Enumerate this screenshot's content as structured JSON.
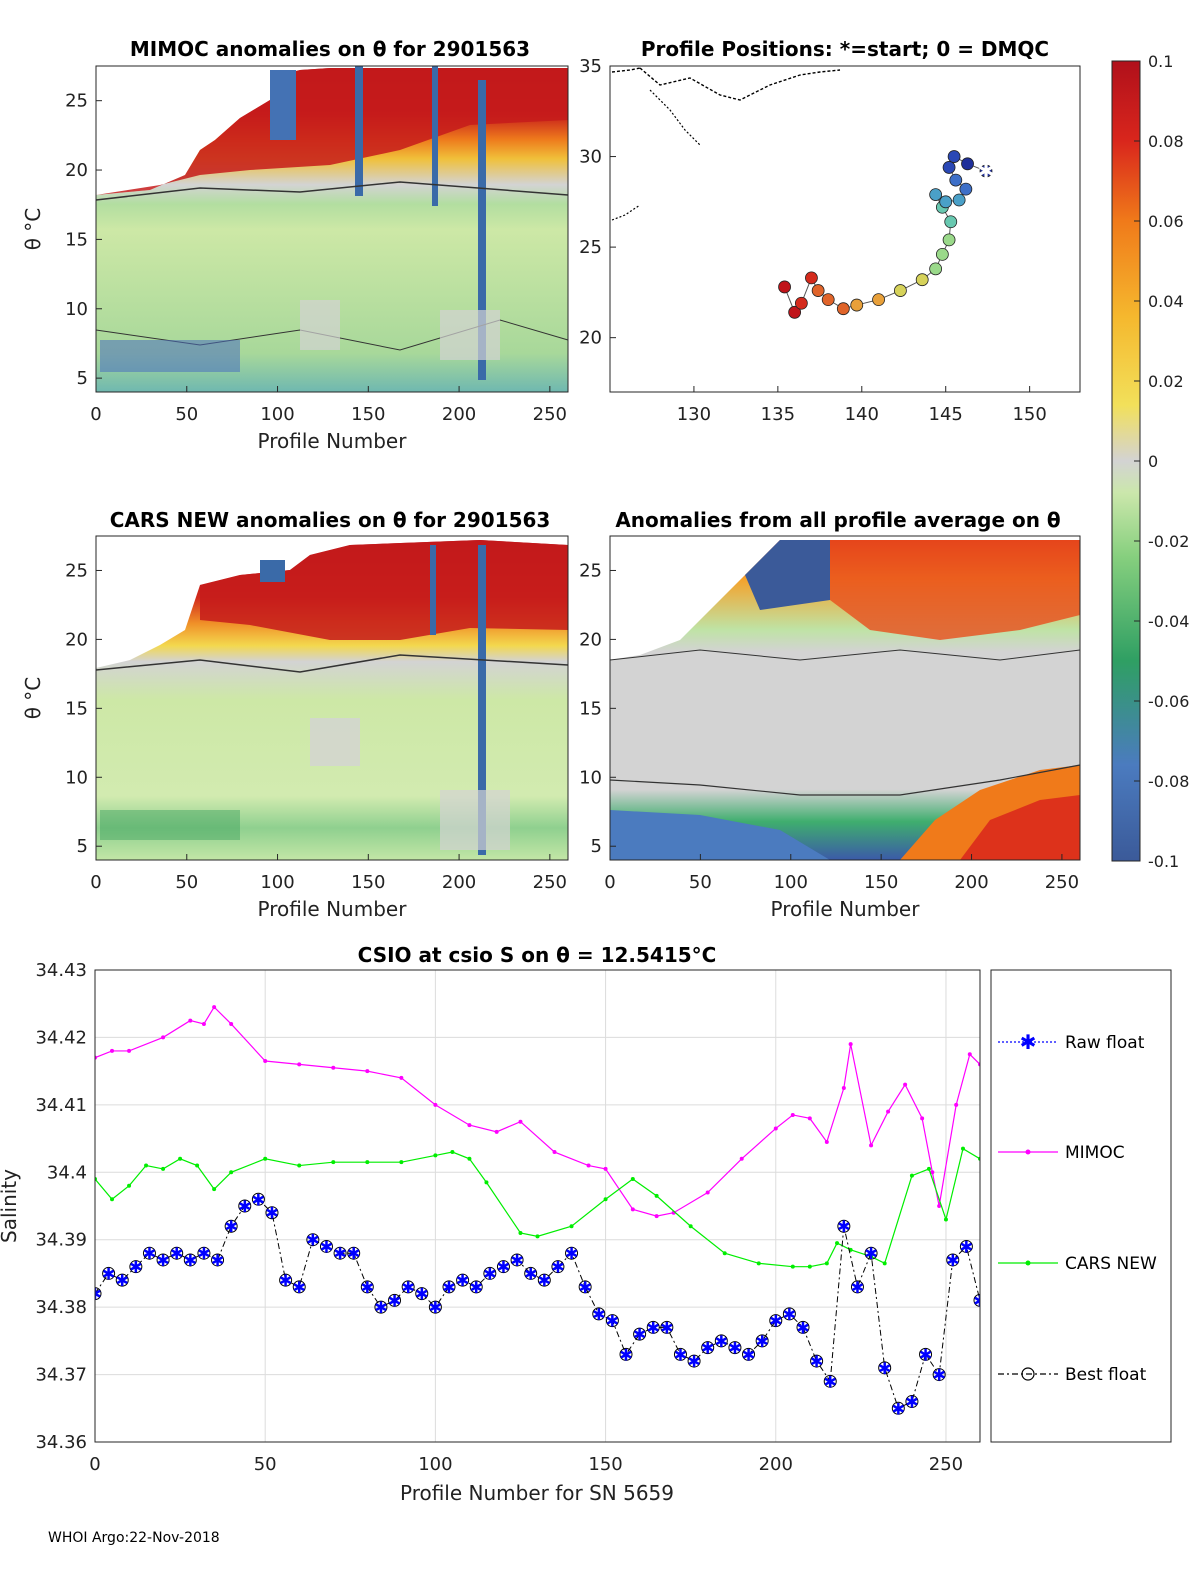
{
  "footer": "WHOI Argo:22-Nov-2018",
  "colorbar": {
    "ticks": [
      "0.1",
      "0.08",
      "0.06",
      "0.04",
      "0.02",
      "0",
      "-0.02",
      "-0.04",
      "-0.06",
      "-0.08",
      "-0.1"
    ],
    "colors": [
      "#3b5a99",
      "#4b7bbf",
      "#3aa05a",
      "#7ccd7c",
      "#c9e6a7",
      "#d3d3d3",
      "#f2e05a",
      "#f5b82e",
      "#f07a1a",
      "#d9261c",
      "#b0101b"
    ]
  },
  "chart_data": [
    {
      "type": "heatmap",
      "title": "MIMOC anomalies on θ  for 2901563",
      "xlabel": "Profile Number",
      "ylabel": "θ °C",
      "xlim": [
        0,
        260
      ],
      "ylim": [
        4,
        27.5
      ],
      "xticks": [
        "0",
        "50",
        "100",
        "150",
        "200",
        "250"
      ],
      "yticks": [
        "5",
        "10",
        "15",
        "20",
        "25"
      ]
    },
    {
      "type": "scatter",
      "title": "Profile Positions: *=start; 0 = DMQC",
      "xlim": [
        125,
        153
      ],
      "ylim": [
        17,
        35
      ],
      "xticks": [
        "130",
        "135",
        "140",
        "145",
        "150"
      ],
      "yticks": [
        "20",
        "25",
        "30",
        "35"
      ],
      "track_lon": [
        147.4,
        146.3,
        145.5,
        145.2,
        145.6,
        146.2,
        145.8,
        145.0,
        144.4,
        144.8,
        145.3,
        145.2,
        144.8,
        144.4,
        143.6,
        142.3,
        141.0,
        139.7,
        138.9,
        138.0,
        137.4,
        137.0,
        136.4,
        136.0,
        135.4
      ],
      "track_lat": [
        29.2,
        29.6,
        30.0,
        29.4,
        28.7,
        28.2,
        27.6,
        27.5,
        27.9,
        27.2,
        26.4,
        25.4,
        24.6,
        23.8,
        23.2,
        22.6,
        22.1,
        21.8,
        21.6,
        22.1,
        22.6,
        23.3,
        21.9,
        21.4,
        22.8
      ]
    },
    {
      "type": "heatmap",
      "title": "CARS NEW anomalies on θ for 2901563",
      "xlabel": "Profile Number",
      "ylabel": "θ °C",
      "xlim": [
        0,
        260
      ],
      "ylim": [
        4,
        27.5
      ],
      "xticks": [
        "0",
        "50",
        "100",
        "150",
        "200",
        "250"
      ],
      "yticks": [
        "5",
        "10",
        "15",
        "20",
        "25"
      ]
    },
    {
      "type": "heatmap",
      "title": "Anomalies from all profile average on θ",
      "xlabel": "Profile Number",
      "xlim": [
        0,
        260
      ],
      "ylim": [
        4,
        27.5
      ],
      "xticks": [
        "0",
        "50",
        "100",
        "150",
        "200",
        "250"
      ],
      "yticks": [
        "5",
        "10",
        "15",
        "20",
        "25"
      ]
    },
    {
      "type": "line",
      "title": "CSIO at csio S on θ = 12.5415°C",
      "xlabel": "Profile Number for SN 5659",
      "ylabel": "Salinity",
      "xlim": [
        0,
        260
      ],
      "ylim": [
        34.36,
        34.43
      ],
      "xticks": [
        "0",
        "50",
        "100",
        "150",
        "200",
        "250"
      ],
      "yticks": [
        "34.36",
        "34.37",
        "34.38",
        "34.39",
        "34.4",
        "34.41",
        "34.42",
        "34.43"
      ],
      "legend": [
        "Raw float",
        "MIMOC",
        "CARS NEW",
        "Best float"
      ],
      "legend_position": "outside-right",
      "series": [
        {
          "name": "MIMOC",
          "color": "#ff00ff",
          "x": [
            0,
            5,
            10,
            20,
            28,
            32,
            35,
            40,
            50,
            60,
            70,
            80,
            90,
            100,
            110,
            118,
            125,
            135,
            145,
            150,
            158,
            165,
            170,
            180,
            190,
            200,
            205,
            210,
            215,
            220,
            222,
            228,
            233,
            238,
            243,
            246,
            248,
            253,
            257,
            260
          ],
          "y": [
            34.417,
            34.418,
            34.418,
            34.42,
            34.4225,
            34.422,
            34.4245,
            34.422,
            34.4165,
            34.416,
            34.4155,
            34.415,
            34.414,
            34.41,
            34.407,
            34.406,
            34.4075,
            34.403,
            34.401,
            34.4005,
            34.3945,
            34.3935,
            34.394,
            34.397,
            34.402,
            34.4065,
            34.4085,
            34.408,
            34.4045,
            34.4125,
            34.419,
            34.404,
            34.409,
            34.413,
            34.408,
            34.4,
            34.395,
            34.41,
            34.4175,
            34.416
          ]
        },
        {
          "name": "CARS NEW",
          "color": "#00ee00",
          "x": [
            0,
            5,
            10,
            15,
            20,
            25,
            30,
            35,
            40,
            50,
            60,
            70,
            80,
            90,
            100,
            105,
            110,
            115,
            125,
            130,
            140,
            150,
            158,
            165,
            175,
            185,
            195,
            205,
            210,
            215,
            218,
            222,
            228,
            232,
            240,
            245,
            250,
            255,
            260
          ],
          "y": [
            34.399,
            34.396,
            34.398,
            34.401,
            34.4005,
            34.402,
            34.401,
            34.3975,
            34.4,
            34.402,
            34.401,
            34.4015,
            34.4015,
            34.4015,
            34.4025,
            34.403,
            34.402,
            34.3985,
            34.391,
            34.3905,
            34.392,
            34.396,
            34.399,
            34.3965,
            34.392,
            34.388,
            34.3865,
            34.386,
            34.386,
            34.3865,
            34.3895,
            34.3885,
            34.3875,
            34.3865,
            34.3995,
            34.4005,
            34.393,
            34.4035,
            34.402
          ]
        },
        {
          "name": "Best float",
          "color": "#000000",
          "x": [
            0,
            4,
            8,
            12,
            16,
            20,
            24,
            28,
            32,
            36,
            40,
            44,
            48,
            52,
            56,
            60,
            64,
            68,
            72,
            76,
            80,
            84,
            88,
            92,
            96,
            100,
            104,
            108,
            112,
            116,
            120,
            124,
            128,
            132,
            136,
            140,
            144,
            148,
            152,
            156,
            160,
            164,
            168,
            172,
            176,
            180,
            184,
            188,
            192,
            196,
            200,
            204,
            208,
            212,
            216,
            220,
            224,
            228,
            232,
            236,
            240,
            244,
            248,
            252,
            256,
            260
          ],
          "y": [
            34.382,
            34.385,
            34.384,
            34.386,
            34.388,
            34.387,
            34.388,
            34.387,
            34.388,
            34.387,
            34.392,
            34.395,
            34.396,
            34.394,
            34.384,
            34.383,
            34.39,
            34.389,
            34.388,
            34.388,
            34.383,
            34.38,
            34.381,
            34.383,
            34.382,
            34.38,
            34.383,
            34.384,
            34.383,
            34.385,
            34.386,
            34.387,
            34.385,
            34.384,
            34.386,
            34.388,
            34.383,
            34.379,
            34.378,
            34.373,
            34.376,
            34.377,
            34.377,
            34.373,
            34.372,
            34.374,
            34.375,
            34.374,
            34.373,
            34.375,
            34.378,
            34.379,
            34.377,
            34.372,
            34.369,
            34.392,
            34.383,
            34.388,
            34.371,
            34.365,
            34.366,
            34.373,
            34.37,
            34.387,
            34.389,
            34.381
          ]
        },
        {
          "name": "Raw float",
          "color": "#0000ff",
          "x": [
            0,
            4,
            8,
            12,
            16,
            20,
            24,
            28,
            32,
            36,
            40,
            44,
            48,
            52,
            56,
            60,
            64,
            68,
            72,
            76,
            80,
            84,
            88,
            92,
            96,
            100,
            104,
            108,
            112,
            116,
            120,
            124,
            128,
            132,
            136,
            140,
            144,
            148,
            152,
            156,
            160,
            164,
            168,
            172,
            176,
            180,
            184,
            188,
            192,
            196,
            200,
            204,
            208,
            212,
            216,
            220,
            224,
            228,
            232,
            236,
            240,
            244,
            248,
            252,
            256,
            260
          ],
          "y": [
            34.382,
            34.385,
            34.384,
            34.386,
            34.388,
            34.387,
            34.388,
            34.387,
            34.388,
            34.387,
            34.392,
            34.395,
            34.396,
            34.394,
            34.384,
            34.383,
            34.39,
            34.389,
            34.388,
            34.388,
            34.383,
            34.38,
            34.381,
            34.383,
            34.382,
            34.38,
            34.383,
            34.384,
            34.383,
            34.385,
            34.386,
            34.387,
            34.385,
            34.384,
            34.386,
            34.388,
            34.383,
            34.379,
            34.378,
            34.373,
            34.376,
            34.377,
            34.377,
            34.373,
            34.372,
            34.374,
            34.375,
            34.374,
            34.373,
            34.375,
            34.378,
            34.379,
            34.377,
            34.372,
            34.369,
            34.392,
            34.383,
            34.388,
            34.371,
            34.365,
            34.366,
            34.373,
            34.37,
            34.387,
            34.389,
            34.381
          ]
        }
      ]
    }
  ]
}
